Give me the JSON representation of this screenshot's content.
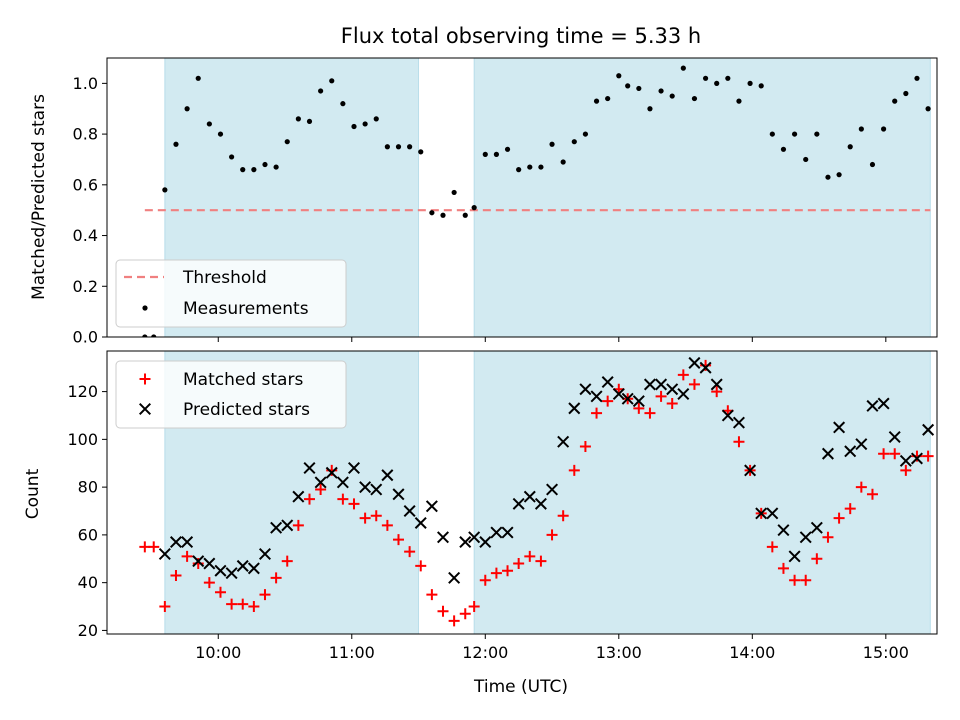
{
  "chart_data": [
    {
      "type": "scatter",
      "title": "Flux total observing time = 5.33 h",
      "xlabel": "",
      "ylabel": "Matched/Predicted stars",
      "xlim": [
        "09:10",
        "15:23"
      ],
      "ylim": [
        0,
        1.1
      ],
      "yticks": [
        "0.0",
        "0.2",
        "0.4",
        "0.6",
        "0.8",
        "1.0"
      ],
      "xticks": [
        "10:00",
        "11:00",
        "12:00",
        "13:00",
        "14:00",
        "15:00"
      ],
      "show_xtick_labels": false,
      "shaded_intervals": [
        [
          "09:36",
          "11:30"
        ],
        [
          "11:55",
          "15:20"
        ]
      ],
      "shade_color": "#add8e6",
      "threshold": {
        "name": "Threshold",
        "y": 0.5,
        "x_range": [
          "09:27",
          "15:20"
        ],
        "color": "#f08080"
      },
      "series": [
        {
          "name": "Measurements",
          "marker": "dot",
          "color": "#000000",
          "x": [
            "09:27",
            "09:31",
            "09:36",
            "09:41",
            "09:46",
            "09:51",
            "09:56",
            "10:01",
            "10:06",
            "10:11",
            "10:16",
            "10:21",
            "10:26",
            "10:31",
            "10:36",
            "10:41",
            "10:46",
            "10:51",
            "10:56",
            "11:01",
            "11:06",
            "11:11",
            "11:16",
            "11:21",
            "11:26",
            "11:31",
            "11:36",
            "11:41",
            "11:46",
            "11:51",
            "11:55",
            "12:00",
            "12:05",
            "12:10",
            "12:15",
            "12:20",
            "12:25",
            "12:30",
            "12:35",
            "12:40",
            "12:45",
            "12:50",
            "12:55",
            "13:00",
            "13:04",
            "13:09",
            "13:14",
            "13:19",
            "13:24",
            "13:29",
            "13:34",
            "13:39",
            "13:44",
            "13:49",
            "13:54",
            "13:59",
            "14:04",
            "14:09",
            "14:14",
            "14:19",
            "14:24",
            "14:29",
            "14:34",
            "14:39",
            "14:44",
            "14:49",
            "14:54",
            "14:59",
            "15:04",
            "15:09",
            "15:14",
            "15:19"
          ],
          "y": [
            0.0,
            0.0,
            0.58,
            0.76,
            0.9,
            1.02,
            0.84,
            0.8,
            0.71,
            0.66,
            0.66,
            0.68,
            0.67,
            0.77,
            0.86,
            0.85,
            0.97,
            1.01,
            0.92,
            0.83,
            0.84,
            0.86,
            0.75,
            0.75,
            0.75,
            0.73,
            0.49,
            0.48,
            0.57,
            0.48,
            0.51,
            0.72,
            0.72,
            0.74,
            0.66,
            0.67,
            0.67,
            0.76,
            0.69,
            0.77,
            0.8,
            0.93,
            0.94,
            1.03,
            0.99,
            0.98,
            0.9,
            0.97,
            0.95,
            1.06,
            0.94,
            1.02,
            1.0,
            1.02,
            0.93,
            1.0,
            0.99,
            0.8,
            0.74,
            0.8,
            0.7,
            0.8,
            0.63,
            0.64,
            0.75,
            0.82,
            0.68,
            0.82,
            0.93,
            0.96,
            1.02,
            0.9
          ]
        }
      ],
      "legend": {
        "position": "lower-left",
        "entries": [
          "Threshold",
          "Measurements"
        ]
      }
    },
    {
      "type": "scatter",
      "title": "",
      "xlabel": "Time (UTC)",
      "ylabel": "Count",
      "xlim": [
        "09:10",
        "15:23"
      ],
      "ylim": [
        18.5,
        137
      ],
      "yticks": [
        "20",
        "40",
        "60",
        "80",
        "100",
        "120"
      ],
      "xticks": [
        "10:00",
        "11:00",
        "12:00",
        "13:00",
        "14:00",
        "15:00"
      ],
      "shaded_intervals": [
        [
          "09:36",
          "11:30"
        ],
        [
          "11:55",
          "15:20"
        ]
      ],
      "shade_color": "#add8e6",
      "series": [
        {
          "name": "Matched stars",
          "marker": "plus",
          "color": "#ff0000",
          "x": [
            "09:27",
            "09:31",
            "09:36",
            "09:41",
            "09:46",
            "09:51",
            "09:56",
            "10:01",
            "10:06",
            "10:11",
            "10:16",
            "10:21",
            "10:26",
            "10:31",
            "10:36",
            "10:41",
            "10:46",
            "10:51",
            "10:56",
            "11:01",
            "11:06",
            "11:11",
            "11:16",
            "11:21",
            "11:26",
            "11:31",
            "11:36",
            "11:41",
            "11:46",
            "11:51",
            "11:55",
            "12:00",
            "12:05",
            "12:10",
            "12:15",
            "12:20",
            "12:25",
            "12:30",
            "12:35",
            "12:40",
            "12:45",
            "12:50",
            "12:55",
            "13:00",
            "13:04",
            "13:09",
            "13:14",
            "13:19",
            "13:24",
            "13:29",
            "13:34",
            "13:39",
            "13:44",
            "13:49",
            "13:54",
            "13:59",
            "14:04",
            "14:09",
            "14:14",
            "14:19",
            "14:24",
            "14:29",
            "14:34",
            "14:39",
            "14:44",
            "14:49",
            "14:54",
            "14:59",
            "15:04",
            "15:09",
            "15:14",
            "15:19"
          ],
          "y": [
            55,
            55,
            30,
            43,
            51,
            48,
            40,
            36,
            31,
            31,
            30,
            35,
            42,
            49,
            64,
            75,
            79,
            87,
            75,
            73,
            67,
            68,
            64,
            58,
            53,
            47,
            35,
            28,
            24,
            27,
            30,
            41,
            44,
            45,
            48,
            51,
            49,
            60,
            68,
            87,
            97,
            111,
            116,
            121,
            117,
            113,
            111,
            118,
            115,
            127,
            123,
            131,
            120,
            112,
            99,
            87,
            69,
            55,
            46,
            41,
            41,
            50,
            59,
            67,
            71,
            80,
            77,
            94,
            94,
            87,
            93,
            93
          ]
        },
        {
          "name": "Predicted stars",
          "marker": "x",
          "color": "#000000",
          "x": [
            "09:36",
            "09:41",
            "09:46",
            "09:51",
            "09:56",
            "10:01",
            "10:06",
            "10:11",
            "10:16",
            "10:21",
            "10:26",
            "10:31",
            "10:36",
            "10:41",
            "10:46",
            "10:51",
            "10:56",
            "11:01",
            "11:06",
            "11:11",
            "11:16",
            "11:21",
            "11:26",
            "11:31",
            "11:36",
            "11:41",
            "11:46",
            "11:51",
            "11:55",
            "12:00",
            "12:05",
            "12:10",
            "12:15",
            "12:20",
            "12:25",
            "12:30",
            "12:35",
            "12:40",
            "12:45",
            "12:50",
            "12:55",
            "13:00",
            "13:04",
            "13:09",
            "13:14",
            "13:19",
            "13:24",
            "13:29",
            "13:34",
            "13:39",
            "13:44",
            "13:49",
            "13:54",
            "13:59",
            "14:04",
            "14:09",
            "14:14",
            "14:19",
            "14:24",
            "14:29",
            "14:34",
            "14:39",
            "14:44",
            "14:49",
            "14:54",
            "14:59",
            "15:04",
            "15:09",
            "15:14",
            "15:19"
          ],
          "y": [
            52,
            57,
            57,
            49,
            48,
            45,
            44,
            47,
            46,
            52,
            63,
            64,
            76,
            88,
            82,
            86,
            82,
            88,
            80,
            79,
            85,
            77,
            70,
            65,
            72,
            59,
            42,
            57,
            59,
            57,
            61,
            61,
            73,
            76,
            73,
            79,
            99,
            113,
            121,
            118,
            124,
            119,
            117,
            116,
            123,
            123,
            121,
            119,
            132,
            130,
            123,
            110,
            107,
            87,
            69,
            69,
            62,
            51,
            59,
            63,
            94,
            105,
            95,
            98,
            114,
            115,
            101,
            91,
            92,
            104
          ]
        }
      ],
      "legend": {
        "position": "upper-left",
        "entries": [
          "Matched stars",
          "Predicted stars"
        ]
      }
    }
  ]
}
